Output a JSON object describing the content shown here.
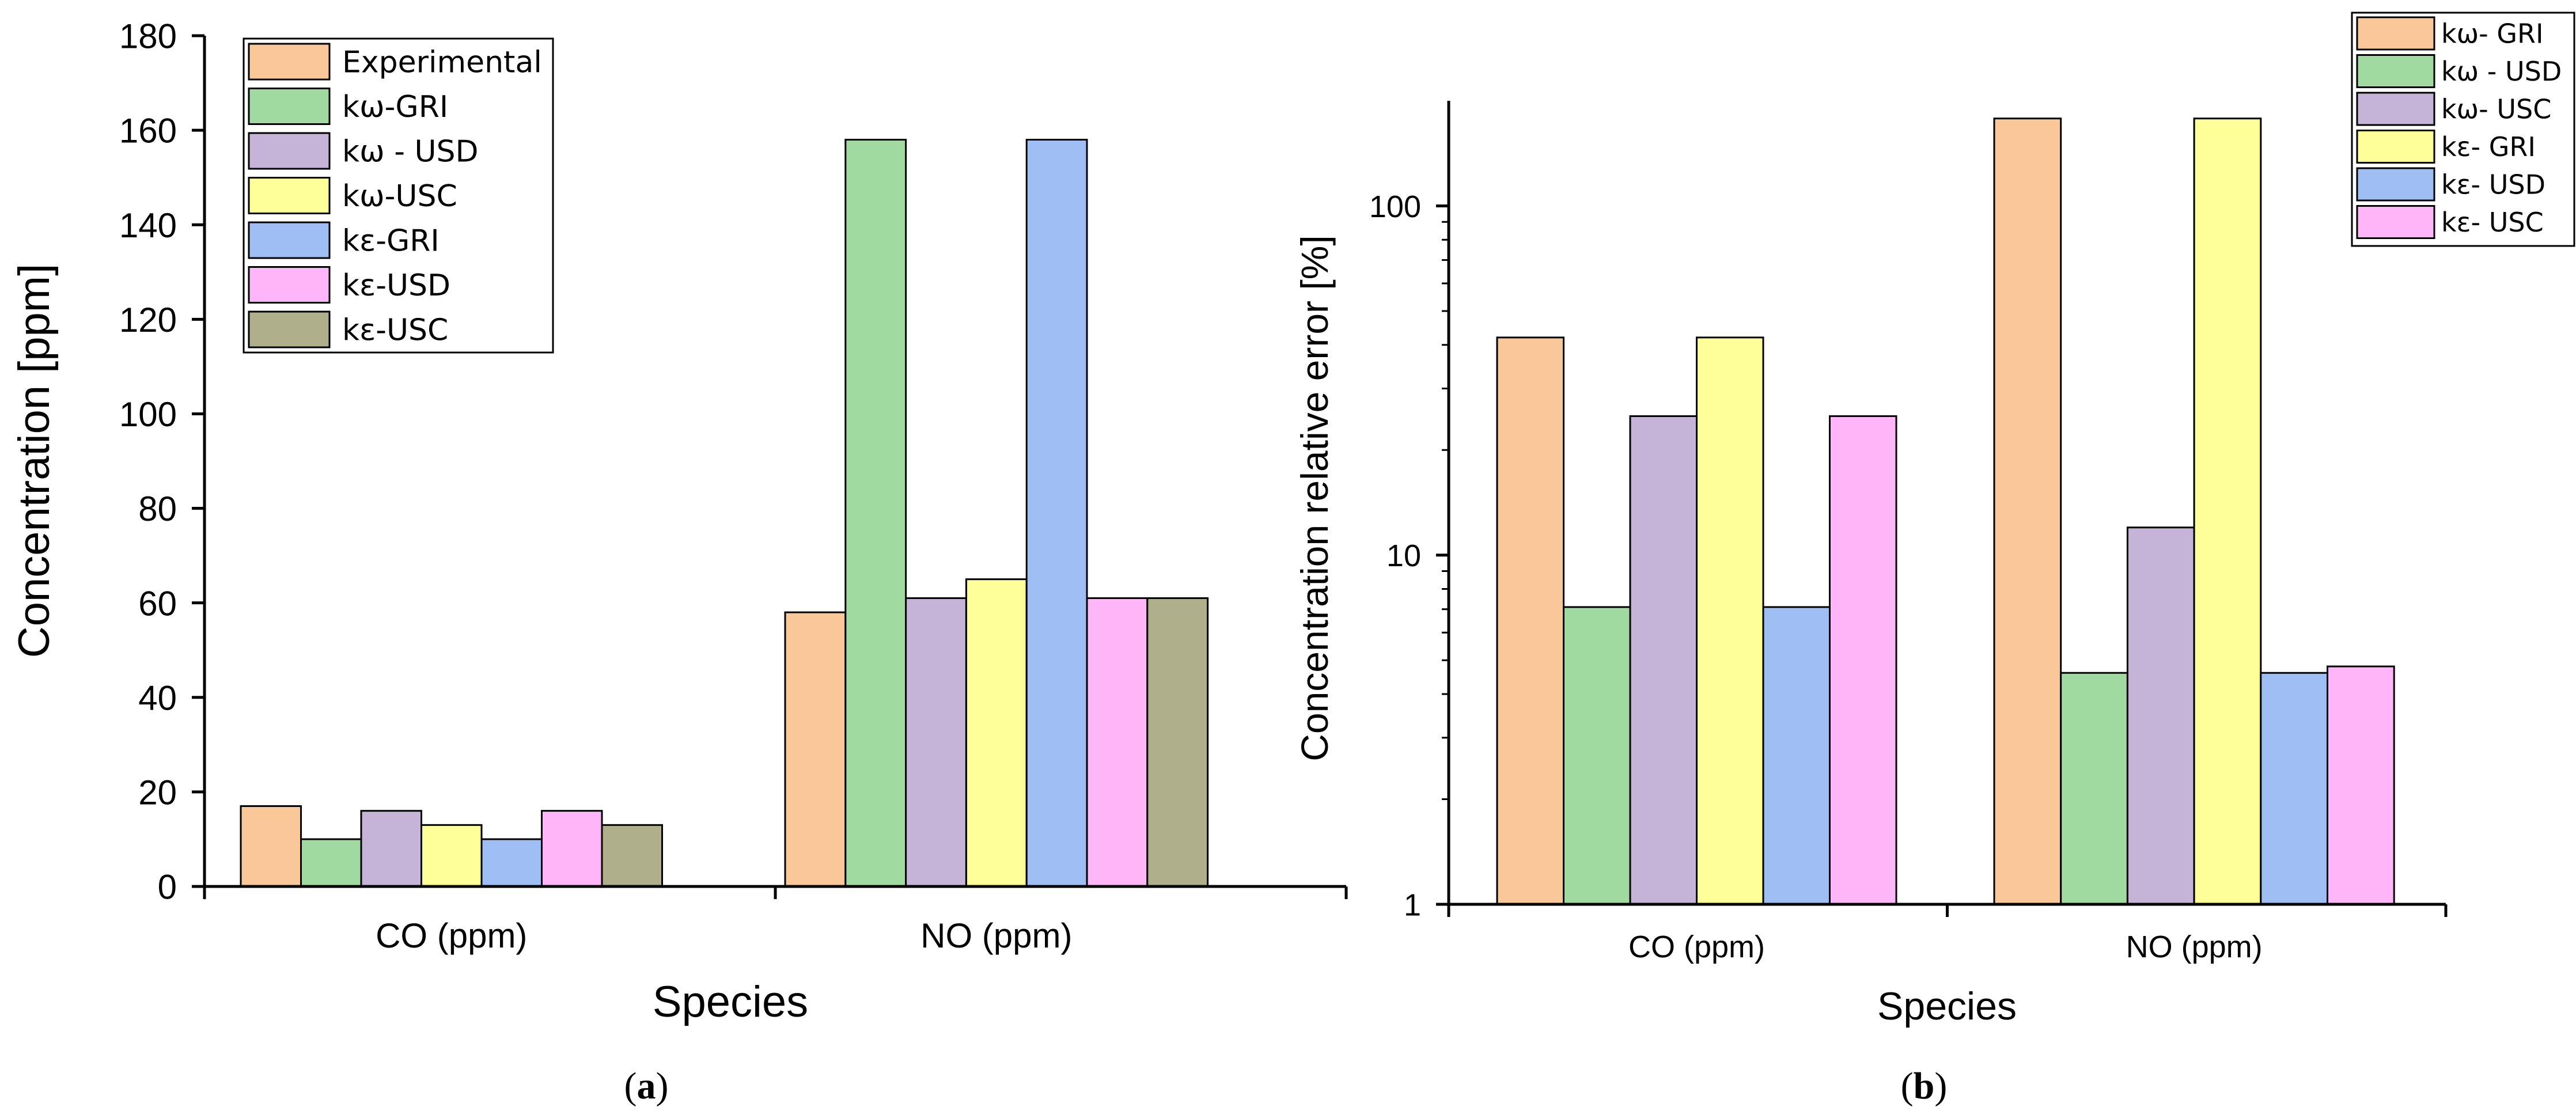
{
  "colors": {
    "orange": "#FAC898",
    "green": "#A0DAA0",
    "purple": "#C5B4D8",
    "yellow": "#FFFF99",
    "blue": "#9FBEF4",
    "pink": "#FFB6F9",
    "olive": "#AFAF8C",
    "stroke": "#000000"
  },
  "chart_data": [
    {
      "id": "a",
      "type": "bar",
      "panel_label_open": "(",
      "panel_label_letter": "a",
      "panel_label_close": ")",
      "categories": [
        "CO (ppm)",
        "NO (ppm)"
      ],
      "xlabel": "Species",
      "ylabel": "Concentration [ppm]",
      "yscale": "linear",
      "ylim": [
        0,
        180
      ],
      "yticks": [
        0,
        20,
        40,
        60,
        80,
        100,
        120,
        140,
        160,
        180
      ],
      "ytick_labels": [
        "0",
        "20",
        "40",
        "60",
        "80",
        "100",
        "120",
        "140",
        "160",
        "180"
      ],
      "legend_position": "top-left",
      "series": [
        {
          "name": "Experimental",
          "color": "orange",
          "values": [
            17,
            58
          ]
        },
        {
          "name": "kω-GRI",
          "color": "green",
          "values": [
            10,
            158
          ]
        },
        {
          "name": "kω - USD",
          "color": "purple",
          "values": [
            16,
            61
          ]
        },
        {
          "name": "kω-USC",
          "color": "yellow",
          "values": [
            13,
            65
          ]
        },
        {
          "name": "kε-GRI",
          "color": "blue",
          "values": [
            10,
            158
          ]
        },
        {
          "name": "kε-USD",
          "color": "pink",
          "values": [
            16,
            61
          ]
        },
        {
          "name": "kε-USC",
          "color": "olive",
          "values": [
            13,
            61
          ]
        }
      ]
    },
    {
      "id": "b",
      "type": "bar",
      "panel_label_open": "(",
      "panel_label_letter": "b",
      "panel_label_close": ")",
      "categories": [
        "CO (ppm)",
        "NO (ppm)"
      ],
      "xlabel": "Species",
      "ylabel": "Concentration relative error [%]",
      "yscale": "log",
      "ylim": [
        1,
        200
      ],
      "yticks": [
        1,
        10,
        100
      ],
      "ytick_labels": [
        "1",
        "10",
        "100"
      ],
      "legend_position": "top-right",
      "series": [
        {
          "name": "kω- GRI",
          "color": "orange",
          "values": [
            42,
            178
          ]
        },
        {
          "name": "kω - USD",
          "color": "green",
          "values": [
            7.1,
            4.6
          ]
        },
        {
          "name": "kω- USC",
          "color": "purple",
          "values": [
            25,
            12
          ]
        },
        {
          "name": "kε- GRI",
          "color": "yellow",
          "values": [
            42,
            178
          ]
        },
        {
          "name": "kε- USD",
          "color": "blue",
          "values": [
            7.1,
            4.6
          ]
        },
        {
          "name": "kε- USC",
          "color": "pink",
          "values": [
            25,
            4.8
          ]
        }
      ]
    }
  ]
}
